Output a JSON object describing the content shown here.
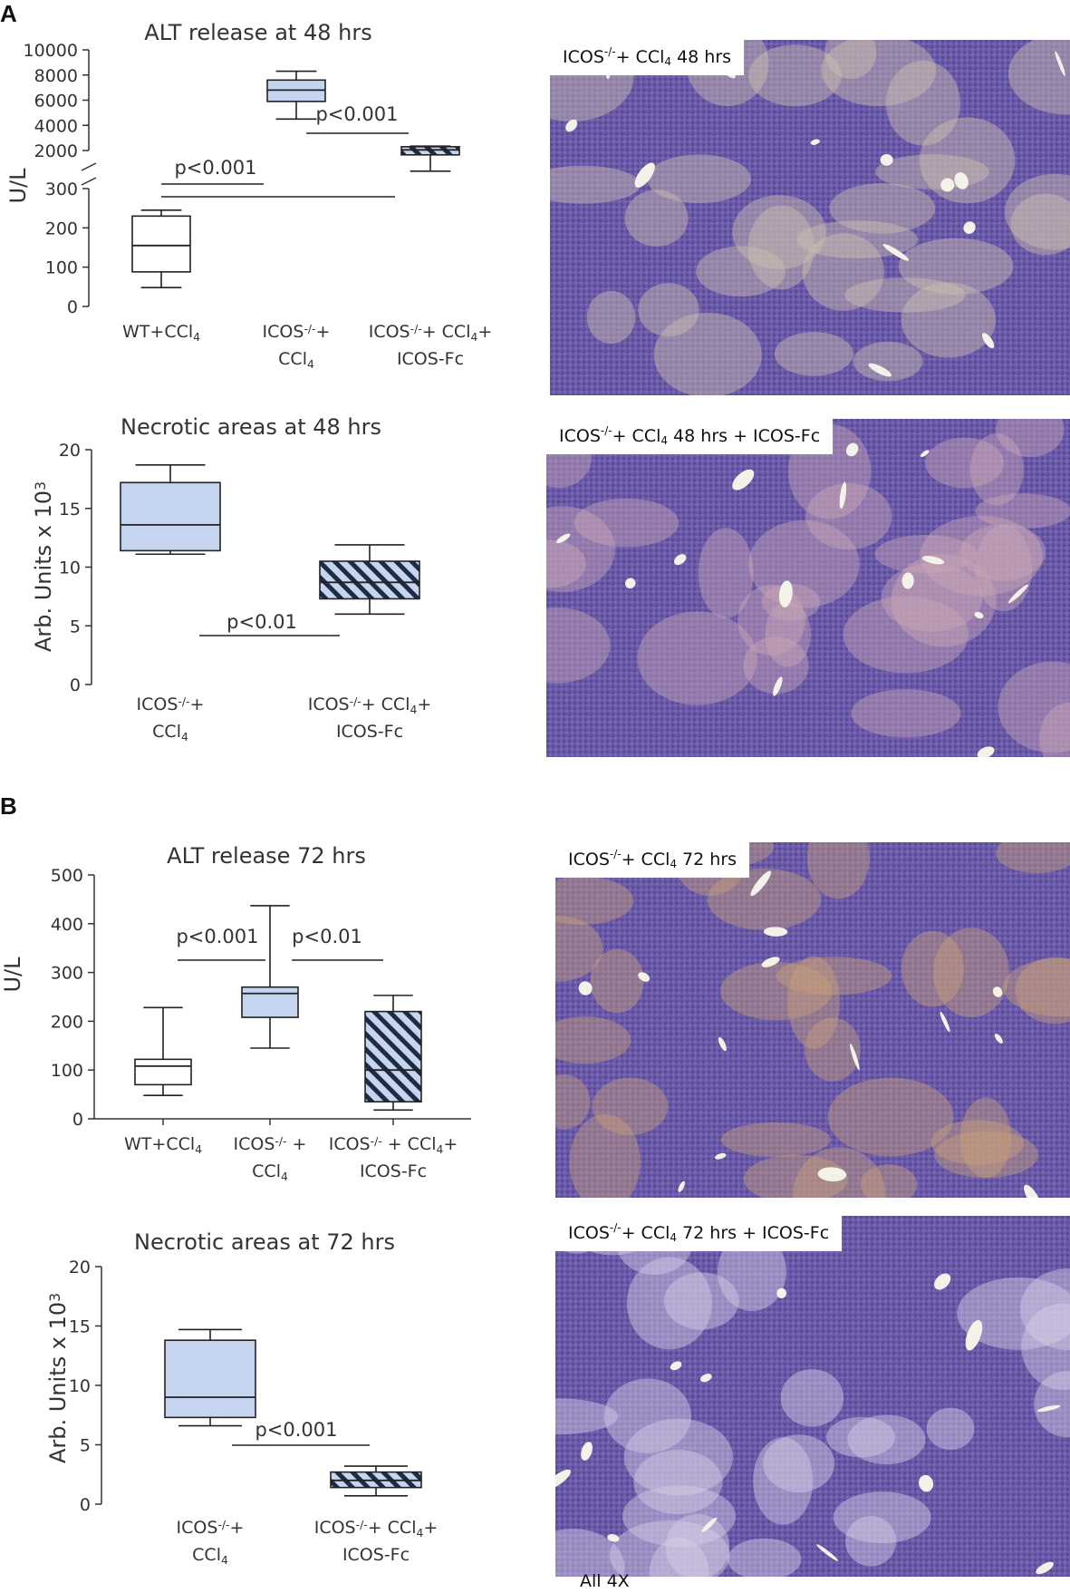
{
  "panels": {
    "a": "A",
    "b": "B"
  },
  "footnote": "All 4X",
  "micrographs": [
    {
      "label_a": "ICOS",
      "label_sup": "-/-",
      "label_b": "+ CCl",
      "label_sub": "4",
      "label_c": " 48 hrs"
    },
    {
      "label_a": "ICOS",
      "label_sup": "-/-",
      "label_b": "+ CCl",
      "label_sub": "4",
      "label_c": " 48 hrs + ICOS-Fc"
    },
    {
      "label_a": "ICOS",
      "label_sup": "-/-",
      "label_b": "+ CCl",
      "label_sub": "4",
      "label_c": " 72 hrs"
    },
    {
      "label_a": "ICOS",
      "label_sup": "-/-",
      "label_b": "+ CCl",
      "label_sub": "4",
      "label_c": " 72 hrs + ICOS-Fc"
    }
  ],
  "colors": {
    "box_fill": "#c5d5ef",
    "hatch": "#1f2a44",
    "axis": "#333333",
    "tissue_base": "#6a5aa8",
    "tissue_light": "#cfc2b0",
    "tissue_vessel": "#f2f2e8"
  },
  "chart_data": [
    {
      "type": "boxplot",
      "title": "ALT release at 48 hrs",
      "ylabel": "U/L",
      "axis_break": true,
      "y_lower": {
        "range": [
          0,
          300
        ],
        "ticks": [
          "0",
          "100",
          "200",
          "300"
        ]
      },
      "y_upper": {
        "range": [
          2000,
          10000
        ],
        "ticks": [
          "2000",
          "4000",
          "6000",
          "8000",
          "10000"
        ]
      },
      "categories": [
        {
          "line1": "WT+CCl",
          "sub1": "4",
          "line2": "",
          "sub2": "",
          "line3": ""
        },
        {
          "line1": "ICOS",
          "sup1": "-/-",
          "line1b": "+",
          "line2": "CCl",
          "sub2": "4",
          "line3": ""
        },
        {
          "line1": "ICOS",
          "sup1": "-/-",
          "line1b": "+ CCl",
          "sub1b": "4",
          "line1c": "+",
          "line2": "ICOS-Fc",
          "line3": ""
        }
      ],
      "boxes": [
        {
          "whisker_low": 48,
          "q1": 88,
          "median": 155,
          "q3": 230,
          "whisker_high": 245,
          "fill": "none",
          "hatched": false
        },
        {
          "whisker_low": 4500,
          "q1": 5900,
          "median": 6800,
          "q3": 7600,
          "whisker_high": 8300,
          "fill": "blue",
          "hatched": false
        },
        {
          "whisker_low": 1050,
          "q1": 1800,
          "median": 2050,
          "q3": 2300,
          "whisker_high": 2350,
          "fill": "blue",
          "hatched": true
        }
      ],
      "annotations": [
        {
          "text": "p<0.001",
          "from": 0,
          "to": 1
        },
        {
          "text": "p<0.001",
          "from": 1,
          "to": 2
        }
      ]
    },
    {
      "type": "boxplot",
      "title": "Necrotic areas at 48 hrs",
      "ylabel": "Arb. Units x 10",
      "ylabel_sup": "3",
      "ylim": [
        0,
        20
      ],
      "yticks": [
        "0",
        "5",
        "10",
        "15",
        "20"
      ],
      "categories": [
        {
          "line1": "ICOS",
          "sup1": "-/-",
          "line1b": "+",
          "line2": "CCl",
          "sub2": "4"
        },
        {
          "line1": "ICOS",
          "sup1": "-/-",
          "line1b": "+ CCl",
          "sub1b": "4",
          "line1c": "+",
          "line2": "ICOS-Fc"
        }
      ],
      "boxes": [
        {
          "whisker_low": 11.1,
          "q1": 11.4,
          "median": 13.6,
          "q3": 17.2,
          "whisker_high": 18.7,
          "fill": "blue",
          "hatched": false
        },
        {
          "whisker_low": 6.0,
          "q1": 7.3,
          "median": 8.7,
          "q3": 10.5,
          "whisker_high": 11.9,
          "fill": "blue",
          "hatched": true
        }
      ],
      "annotations": [
        {
          "text": "p<0.01",
          "from": 0,
          "to": 1
        }
      ]
    },
    {
      "type": "boxplot",
      "title": "ALT release 72 hrs",
      "ylabel": "U/L",
      "ylim": [
        0,
        500
      ],
      "yticks": [
        "0",
        "100",
        "200",
        "300",
        "400",
        "500"
      ],
      "categories": [
        {
          "line1": "WT+CCl",
          "sub1": "4",
          "line2": ""
        },
        {
          "line1": "ICOS",
          "sup1": "-/-",
          "line1b": " +",
          "line2": "CCl",
          "sub2": "4"
        },
        {
          "line1": "ICOS",
          "sup1": "-/-",
          "line1b": " + CCl",
          "sub1b": "4",
          "line1c": "+",
          "line2": "ICOS-Fc"
        }
      ],
      "boxes": [
        {
          "whisker_low": 48,
          "q1": 70,
          "median": 108,
          "q3": 122,
          "whisker_high": 228,
          "fill": "none",
          "hatched": false
        },
        {
          "whisker_low": 145,
          "q1": 208,
          "median": 257,
          "q3": 270,
          "whisker_high": 437,
          "fill": "blue",
          "hatched": false
        },
        {
          "whisker_low": 18,
          "q1": 35,
          "median": 100,
          "q3": 220,
          "whisker_high": 253,
          "fill": "blue",
          "hatched": true
        }
      ],
      "annotations": [
        {
          "text": "p<0.001",
          "from": 0,
          "to": 1
        },
        {
          "text": "p<0.01",
          "from": 1,
          "to": 2
        }
      ]
    },
    {
      "type": "boxplot",
      "title": "Necrotic areas at 72 hrs",
      "ylabel": "Arb. Units x 10",
      "ylabel_sup": "3",
      "ylim": [
        0,
        20
      ],
      "yticks": [
        "0",
        "5",
        "10",
        "15",
        "20"
      ],
      "categories": [
        {
          "line1": "ICOS",
          "sup1": "-/-",
          "line1b": "+",
          "line2": "CCl",
          "sub2": "4"
        },
        {
          "line1": "ICOS",
          "sup1": "-/-",
          "line1b": "+ CCl",
          "sub1b": "4",
          "line1c": "+",
          "line2": "ICOS-Fc"
        }
      ],
      "boxes": [
        {
          "whisker_low": 6.6,
          "q1": 7.3,
          "median": 9.0,
          "q3": 13.8,
          "whisker_high": 14.7,
          "fill": "blue",
          "hatched": false
        },
        {
          "whisker_low": 0.7,
          "q1": 1.4,
          "median": 2.0,
          "q3": 2.7,
          "whisker_high": 3.2,
          "fill": "blue",
          "hatched": true
        }
      ],
      "annotations": [
        {
          "text": "p<0.001",
          "from": 0,
          "to": 1
        }
      ]
    }
  ]
}
